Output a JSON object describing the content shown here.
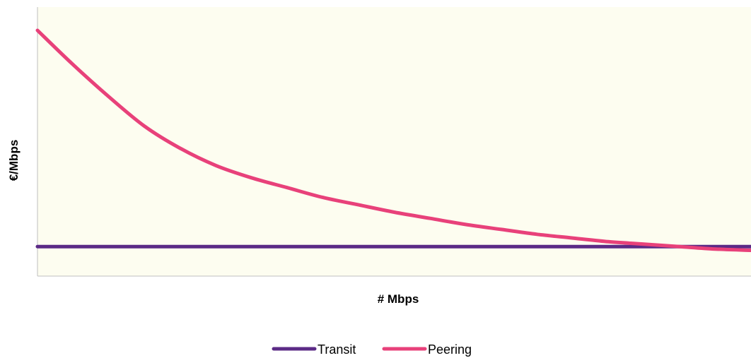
{
  "chart_data": {
    "type": "line",
    "title": "",
    "xlabel": "# Mbps",
    "ylabel": "€/Mbps",
    "xlim": [
      0,
      100
    ],
    "ylim": [
      0,
      100
    ],
    "grid": false,
    "legend_position": "bottom-center",
    "plot_background": "#fdfdf0",
    "series": [
      {
        "name": "Transit",
        "color": "#5b2a86",
        "x": [
          0,
          100
        ],
        "y": [
          12,
          12
        ]
      },
      {
        "name": "Peering",
        "color": "#e8417a",
        "x": [
          0,
          5,
          10,
          15,
          20,
          25,
          30,
          35,
          40,
          45,
          50,
          55,
          60,
          65,
          70,
          75,
          80,
          85,
          90,
          95,
          100
        ],
        "y": [
          100,
          86,
          73,
          61,
          52,
          45,
          40,
          36,
          32,
          29,
          26,
          23.5,
          21,
          19,
          17,
          15.5,
          14,
          13,
          12,
          11,
          10.5
        ]
      }
    ]
  }
}
